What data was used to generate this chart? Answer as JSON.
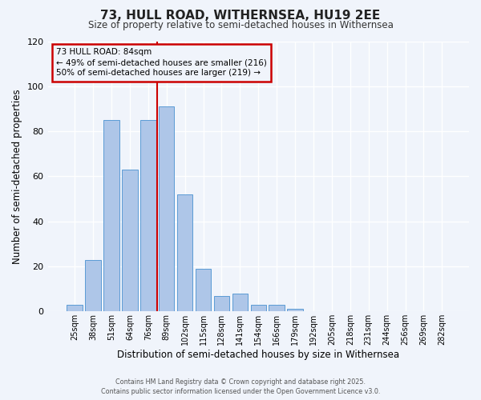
{
  "title": "73, HULL ROAD, WITHERNSEA, HU19 2EE",
  "subtitle": "Size of property relative to semi-detached houses in Withernsea",
  "xlabel": "Distribution of semi-detached houses by size in Withernsea",
  "ylabel": "Number of semi-detached properties",
  "bar_labels": [
    "25sqm",
    "38sqm",
    "51sqm",
    "64sqm",
    "76sqm",
    "89sqm",
    "102sqm",
    "115sqm",
    "128sqm",
    "141sqm",
    "154sqm",
    "166sqm",
    "179sqm",
    "192sqm",
    "205sqm",
    "218sqm",
    "231sqm",
    "244sqm",
    "256sqm",
    "269sqm",
    "282sqm"
  ],
  "bar_values": [
    3,
    23,
    85,
    63,
    85,
    91,
    52,
    19,
    7,
    8,
    3,
    3,
    1,
    0,
    0,
    0,
    0,
    0,
    0,
    0,
    0
  ],
  "bar_color": "#aec6e8",
  "bar_edge_color": "#5b9bd5",
  "vline_pos": 4.5,
  "annotation_line1": "73 HULL ROAD: 84sqm",
  "annotation_line2": "← 49% of semi-detached houses are smaller (216)",
  "annotation_line3": "50% of semi-detached houses are larger (219) →",
  "vline_color": "#cc0000",
  "annotation_box_edge_color": "#cc0000",
  "ylim": [
    0,
    120
  ],
  "yticks": [
    0,
    20,
    40,
    60,
    80,
    100,
    120
  ],
  "background_color": "#f0f4fb",
  "grid_color": "#ffffff",
  "footer_line1": "Contains HM Land Registry data © Crown copyright and database right 2025.",
  "footer_line2": "Contains public sector information licensed under the Open Government Licence v3.0."
}
